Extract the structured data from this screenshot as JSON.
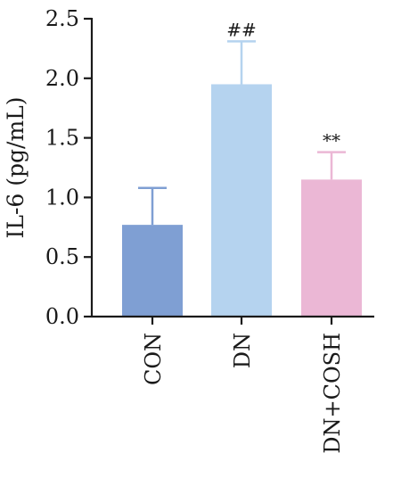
{
  "chart_data": {
    "type": "bar",
    "title": "",
    "xlabel": "",
    "ylabel": "IL-6 (pg/mL)",
    "ylim": [
      0,
      2.5
    ],
    "yticks": [
      0.0,
      0.5,
      1.0,
      1.5,
      2.0,
      2.5
    ],
    "ytick_labels": [
      "0.0",
      "0.5",
      "1.0",
      "1.5",
      "2.0",
      "2.5"
    ],
    "categories": [
      "CON",
      "DN",
      "DN+COSH"
    ],
    "values": [
      0.77,
      1.95,
      1.15
    ],
    "errors": [
      0.31,
      0.36,
      0.23
    ],
    "annotations": [
      "",
      "##",
      "**"
    ],
    "colors": [
      "#7f9fd3",
      "#b5d3ef",
      "#ebb7d5"
    ],
    "error_colors": [
      "#7f9fd3",
      "#b5d3ef",
      "#ebb7d5"
    ],
    "grid": false,
    "legend": "none"
  }
}
